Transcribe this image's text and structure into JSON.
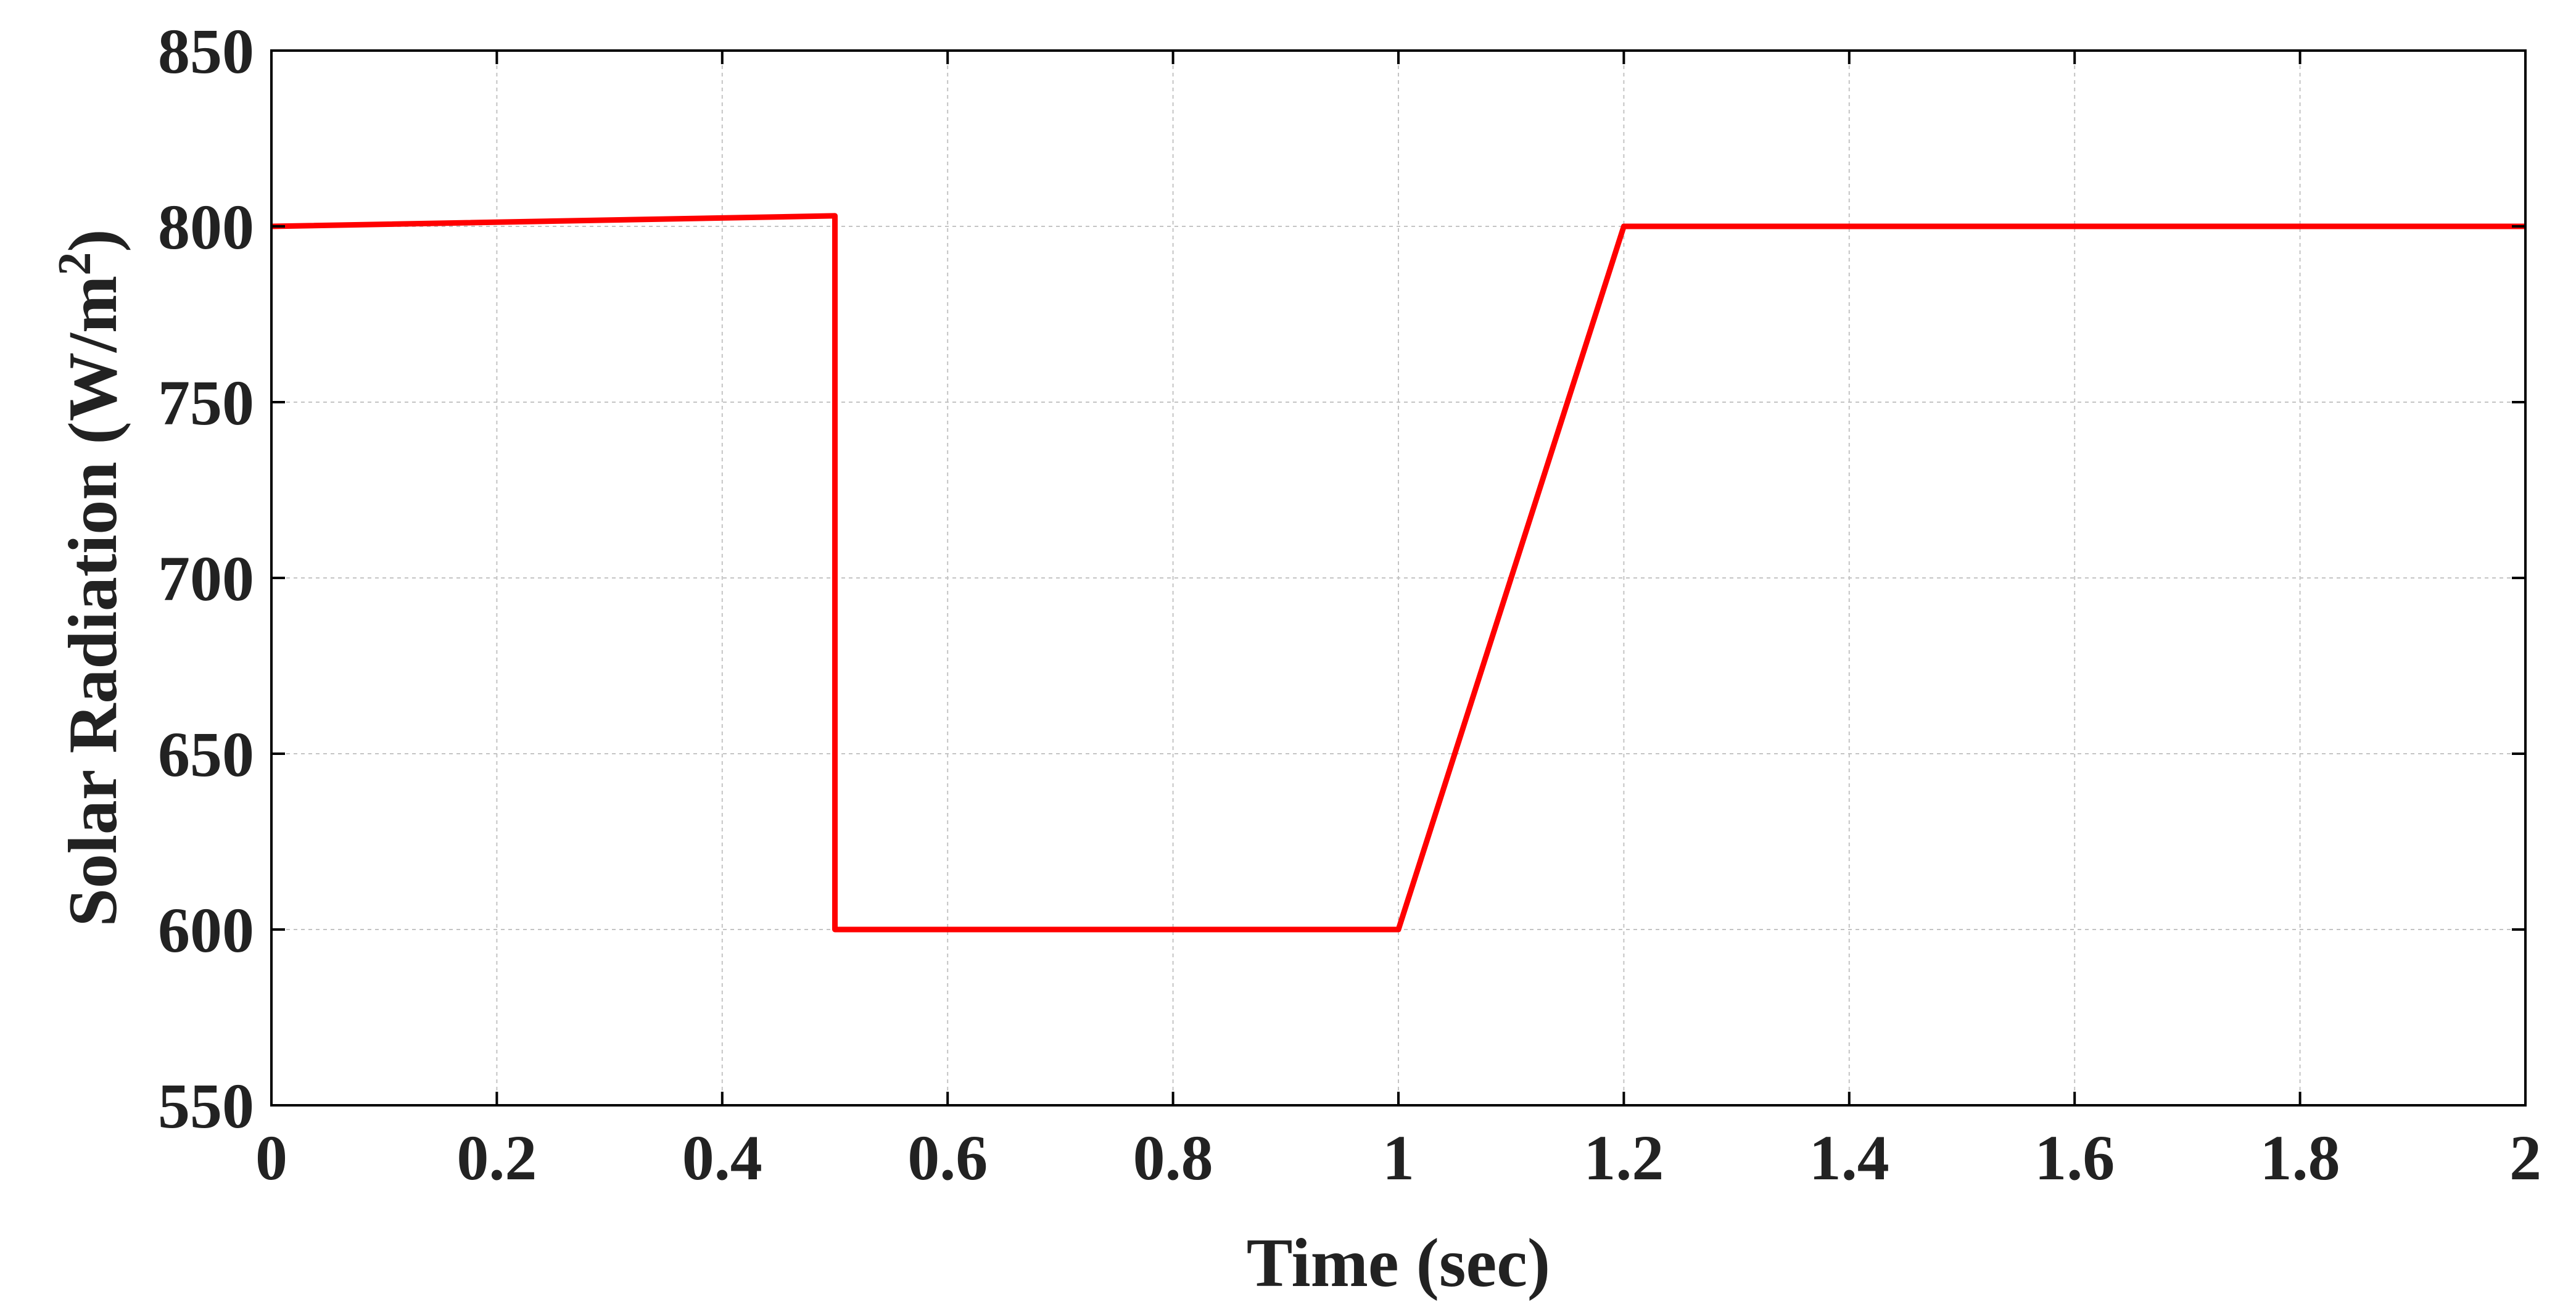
{
  "chart_data": {
    "type": "line",
    "title": "",
    "xlabel": "Time (sec)",
    "ylabel": {
      "prefix": "Solar Radiation (W/m",
      "superscript": "2",
      "suffix": ")"
    },
    "xlim": [
      0,
      2
    ],
    "ylim": [
      550,
      850
    ],
    "xticks": [
      0,
      0.2,
      0.4,
      0.6,
      0.8,
      1,
      1.2,
      1.4,
      1.6,
      1.8,
      2
    ],
    "xtick_labels": [
      "0",
      "0.2",
      "0.4",
      "0.6",
      "0.8",
      "1",
      "1.2",
      "1.4",
      "1.6",
      "1.8",
      "2"
    ],
    "yticks": [
      550,
      600,
      650,
      700,
      750,
      800,
      850
    ],
    "ytick_labels": [
      "550",
      "600",
      "650",
      "700",
      "750",
      "800",
      "850"
    ],
    "grid": true,
    "series": [
      {
        "color": "#ff0000",
        "x": [
          0,
          0.5,
          0.5,
          1.0,
          1.2,
          2.0
        ],
        "y": [
          800,
          803,
          600,
          600,
          800,
          800
        ]
      }
    ]
  }
}
